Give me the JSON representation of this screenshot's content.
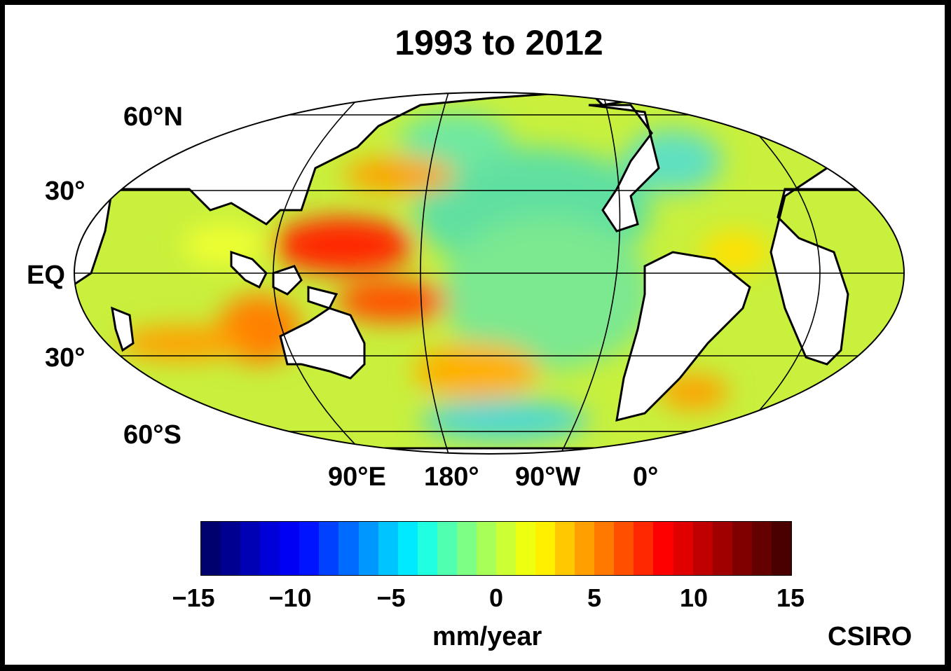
{
  "title": "1993 to 2012",
  "lat_labels": {
    "n60": "60°N",
    "n30": "30°",
    "eq": "EQ",
    "s30": "30°",
    "s60": "60°S"
  },
  "lon_labels": [
    "90°E",
    "180°",
    "90°W",
    "0°"
  ],
  "colorbar": {
    "ticks": [
      "−15",
      "−10",
      "−5",
      "0",
      "5",
      "10",
      "15"
    ],
    "min": -15,
    "max": 15,
    "colors": [
      "#00006f",
      "#000090",
      "#0000b4",
      "#0000d8",
      "#0000f4",
      "#0014ff",
      "#0040ff",
      "#006cff",
      "#0098ff",
      "#00c4ff",
      "#00eaff",
      "#20ffdf",
      "#50ffb0",
      "#7cff84",
      "#a8ff58",
      "#ccff34",
      "#eeff10",
      "#fff000",
      "#ffc800",
      "#ffa000",
      "#ff7800",
      "#ff5000",
      "#ff2800",
      "#ff0000",
      "#e00000",
      "#c00000",
      "#a00000",
      "#800000",
      "#650000",
      "#4a0000"
    ],
    "units": "mm/year"
  },
  "credit": "CSIRO"
}
